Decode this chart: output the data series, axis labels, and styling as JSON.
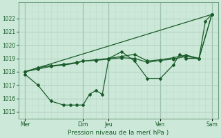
{
  "background_color": "#cce8d8",
  "grid_color_major": "#aacaba",
  "grid_color_minor": "#bbdacc",
  "line_color": "#1a5c2a",
  "xlabel": "Pression niveau de la mer( hPa )",
  "xlabel_fontsize": 6.5,
  "ylim": [
    1014.5,
    1023.2
  ],
  "xlim": [
    0,
    31
  ],
  "yticks": [
    1015,
    1016,
    1017,
    1018,
    1019,
    1020,
    1021,
    1022
  ],
  "ytick_fontsize": 5.5,
  "xtick_fontsize": 5.5,
  "xtick_labels": [
    "Mer",
    "Dim",
    "Jeu",
    "Ven",
    "Sam"
  ],
  "xtick_positions": [
    1,
    10,
    14,
    22,
    30
  ],
  "vline_positions": [
    1,
    10,
    14,
    22,
    30
  ],
  "series_wavy_x": [
    1,
    3,
    5,
    7,
    8,
    9,
    10,
    11,
    12,
    13,
    14,
    16,
    18,
    20,
    22,
    24,
    25,
    26,
    28,
    29,
    30
  ],
  "series_wavy_y": [
    1017.8,
    1017.0,
    1015.8,
    1015.5,
    1015.5,
    1015.5,
    1015.5,
    1016.3,
    1016.6,
    1016.3,
    1019.0,
    1019.5,
    1018.8,
    1017.5,
    1017.5,
    1018.5,
    1019.3,
    1019.0,
    1019.0,
    1021.8,
    1022.3
  ],
  "series_flat1_x": [
    1,
    3,
    5,
    7,
    9,
    10,
    12,
    14,
    16,
    18,
    20,
    22,
    24,
    26,
    28,
    30
  ],
  "series_flat1_y": [
    1018.0,
    1018.2,
    1018.4,
    1018.5,
    1018.65,
    1018.8,
    1018.85,
    1018.95,
    1019.05,
    1019.0,
    1018.7,
    1018.85,
    1018.95,
    1019.15,
    1019.0,
    1022.3
  ],
  "series_flat2_x": [
    1,
    3,
    5,
    7,
    9,
    10,
    12,
    14,
    16,
    18,
    20,
    22,
    24,
    26,
    28,
    30
  ],
  "series_flat2_y": [
    1018.0,
    1018.3,
    1018.45,
    1018.55,
    1018.7,
    1018.8,
    1018.9,
    1019.0,
    1019.15,
    1019.3,
    1018.8,
    1018.9,
    1019.05,
    1019.25,
    1019.0,
    1022.3
  ],
  "series_trend_x": [
    1,
    30
  ],
  "series_trend_y": [
    1018.0,
    1022.3
  ],
  "marker_size": 2.0,
  "line_width": 0.9
}
